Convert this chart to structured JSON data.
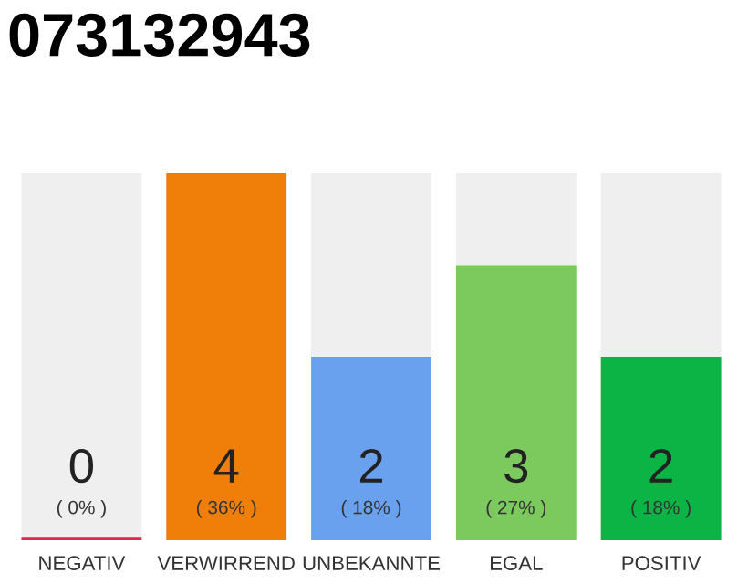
{
  "chart_data": {
    "type": "bar",
    "title": "073132943",
    "categories": [
      "NEGATIV",
      "VERWIRREND",
      "UNBEKANNTE",
      "EGAL",
      "POSITIV"
    ],
    "values": [
      0,
      4,
      2,
      3,
      2
    ],
    "colors": [
      "#e0284a",
      "#f07f0a",
      "#6aa1ee",
      "#7cc95e",
      "#0cb446"
    ],
    "value_labels": [
      "0",
      "4",
      "2",
      "3",
      "2"
    ],
    "annotations": [
      "( 0% )",
      "( 36% )",
      "( 18% )",
      "( 27% )",
      "( 18% )"
    ],
    "grid": false,
    "legend": false
  }
}
